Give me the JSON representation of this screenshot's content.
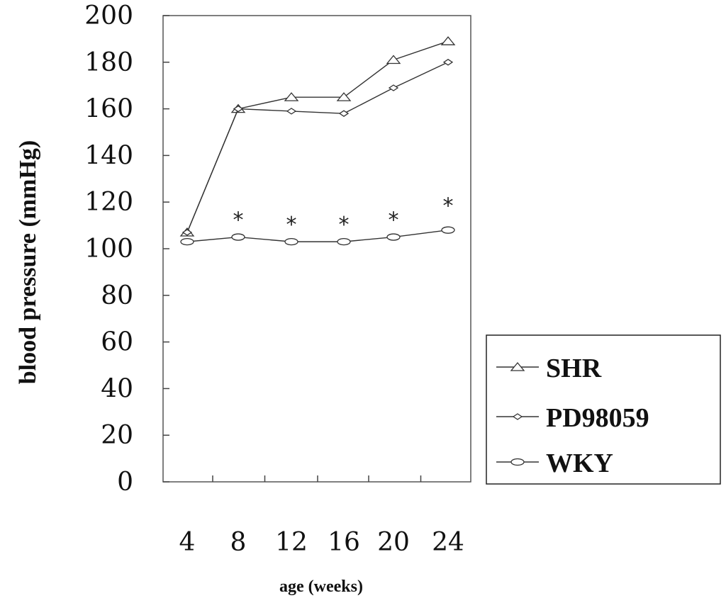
{
  "chart_data": {
    "type": "line",
    "title": "",
    "xlabel": "age (weeks)",
    "ylabel": "blood pressure (mmHg)",
    "x": [
      4,
      8,
      12,
      16,
      20,
      24
    ],
    "x_tick_labels": [
      "4",
      "8",
      "12",
      "16",
      "20",
      "24"
    ],
    "ylim": [
      0,
      200
    ],
    "y_ticks": [
      0,
      20,
      40,
      60,
      80,
      100,
      120,
      140,
      160,
      180,
      200
    ],
    "grid": false,
    "legend_position": "bottom-right, outside plot",
    "series": [
      {
        "name": "SHR",
        "marker": "triangle",
        "values": [
          107,
          160,
          165,
          165,
          181,
          189
        ]
      },
      {
        "name": "PD98059",
        "marker": "diamond",
        "values": [
          107,
          160,
          159,
          158,
          169,
          180
        ]
      },
      {
        "name": "WKY",
        "marker": "circle",
        "values": [
          103,
          105,
          103,
          103,
          105,
          108
        ]
      }
    ],
    "annotations": [
      {
        "x": 8,
        "text": "*"
      },
      {
        "x": 12,
        "text": "*"
      },
      {
        "x": 16,
        "text": "*"
      },
      {
        "x": 20,
        "text": "*"
      },
      {
        "x": 24,
        "text": "*"
      }
    ]
  }
}
